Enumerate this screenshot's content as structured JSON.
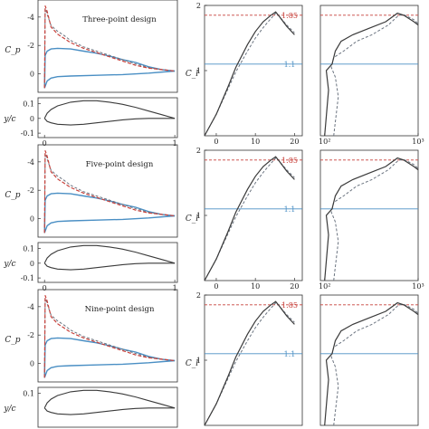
{
  "colors": {
    "solid": "#3a3a3a",
    "dashed": "#6b7480",
    "red": "#c8413b",
    "blue": "#4a8fc4"
  },
  "chart_data": {
    "type": "line",
    "rows": [
      {
        "design_label": "Three-point design",
        "cp_ylabel": "C_p",
        "cp_ytick_labels": [
          "-4",
          "-2",
          "0"
        ],
        "cp_yticks": [
          -4,
          -2,
          0
        ],
        "cp_ylim": [
          -5.2,
          1.3
        ],
        "geom_ylabel": "y/c",
        "geom_ytick_labels": [
          "0.1",
          "0",
          "-0.1"
        ],
        "geom_yticks": [
          0.1,
          0,
          -0.1
        ],
        "geom_ylim": [
          -0.13,
          0.14
        ],
        "x_tick_labels": [
          "0",
          "1"
        ],
        "x_ticks": [
          0,
          1
        ],
        "cl_ylabel": "C_l",
        "cl_ytick_labels": [
          "2",
          "1"
        ],
        "cl_yticks": [
          2,
          1
        ],
        "cl_ylim": [
          0,
          2.0
        ],
        "alpha_tick_labels": [
          "0",
          "10",
          "20"
        ],
        "alpha_ticks": [
          0,
          10,
          20
        ],
        "alpha_xlim": [
          -3,
          22
        ],
        "cd_tick_labels": [
          "10²",
          "10³"
        ],
        "cd_ticks": [
          100,
          1000
        ],
        "ref_labels": [
          "1.85",
          "1.1"
        ],
        "ref_values": [
          1.85,
          1.1
        ]
      },
      {
        "design_label": "Five-point design",
        "cp_ylabel": "C_p",
        "cp_ytick_labels": [
          "-4",
          "-2",
          "0"
        ],
        "cp_yticks": [
          -4,
          -2,
          0
        ],
        "cp_ylim": [
          -5.2,
          1.3
        ],
        "geom_ylabel": "y/c",
        "geom_ytick_labels": [
          "0.1",
          "0",
          "-0.1"
        ],
        "geom_yticks": [
          0.1,
          0,
          -0.1
        ],
        "geom_ylim": [
          -0.13,
          0.14
        ],
        "x_tick_labels": [
          "0",
          "1"
        ],
        "x_ticks": [
          0,
          1
        ],
        "cl_ylabel": "C_l",
        "cl_ytick_labels": [
          "2",
          "1"
        ],
        "cl_yticks": [
          2,
          1
        ],
        "cl_ylim": [
          0,
          2.0
        ],
        "alpha_tick_labels": [
          "0",
          "10",
          "20"
        ],
        "alpha_ticks": [
          0,
          10,
          20
        ],
        "alpha_xlim": [
          -3,
          22
        ],
        "cd_tick_labels": [
          "10²",
          "10³"
        ],
        "cd_ticks": [
          100,
          1000
        ],
        "ref_labels": [
          "1.85",
          "1.1"
        ],
        "ref_values": [
          1.85,
          1.1
        ]
      },
      {
        "design_label": "Nine-point design",
        "cp_ylabel": "C_p",
        "cp_ytick_labels": [
          "-4",
          "-2",
          "0"
        ],
        "cp_yticks": [
          -4,
          -2,
          0
        ],
        "cp_ylim": [
          -5.2,
          1.3
        ],
        "geom_ylabel": "y/c",
        "geom_ytick_labels": [
          "0.1"
        ],
        "geom_yticks": [
          0.1
        ],
        "geom_ylim": [
          -0.13,
          0.14
        ],
        "x_tick_labels": [],
        "x_ticks": [],
        "cl_ylabel": "C_l",
        "cl_ytick_labels": [
          "2",
          "1"
        ],
        "cl_yticks": [
          2,
          1
        ],
        "cl_ylim": [
          0,
          2.0
        ],
        "alpha_tick_labels": [],
        "alpha_ticks": [],
        "alpha_xlim": [
          -3,
          22
        ],
        "cd_tick_labels": [],
        "cd_ticks": [],
        "ref_labels": [
          "1.85",
          "1.1"
        ],
        "ref_values": [
          1.85,
          1.1
        ]
      }
    ],
    "series": {
      "cp_upper_red": {
        "x": [
          0.0,
          0.005,
          0.02,
          0.05,
          0.1,
          0.15,
          0.2,
          0.3,
          0.4,
          0.5,
          0.6,
          0.7,
          0.8,
          0.9,
          1.0
        ],
        "y": [
          1.0,
          -4.8,
          -4.4,
          -3.3,
          -2.8,
          -2.5,
          -2.2,
          -1.8,
          -1.5,
          -1.2,
          -0.9,
          -0.6,
          -0.4,
          -0.3,
          -0.2
        ]
      },
      "cp_upper_dash": {
        "x": [
          0.0,
          0.005,
          0.02,
          0.05,
          0.1,
          0.15,
          0.2,
          0.3,
          0.4,
          0.5,
          0.6,
          0.7,
          0.8,
          0.9,
          1.0
        ],
        "y": [
          1.0,
          -4.6,
          -4.2,
          -3.4,
          -3.0,
          -2.7,
          -2.35,
          -1.9,
          -1.6,
          -1.3,
          -1.0,
          -0.7,
          -0.45,
          -0.3,
          -0.2
        ]
      },
      "cp_upper_blue": {
        "x": [
          0.0,
          0.005,
          0.02,
          0.05,
          0.1,
          0.2,
          0.3,
          0.4,
          0.5,
          0.6,
          0.7,
          0.8,
          0.9,
          1.0
        ],
        "y": [
          1.0,
          -1.3,
          -1.6,
          -1.75,
          -1.8,
          -1.75,
          -1.6,
          -1.45,
          -1.25,
          -1.0,
          -0.8,
          -0.5,
          -0.3,
          -0.2
        ]
      },
      "cp_lower_blue": {
        "x": [
          0.0,
          0.02,
          0.05,
          0.1,
          0.2,
          0.4,
          0.6,
          0.8,
          1.0
        ],
        "y": [
          1.0,
          0.5,
          0.3,
          0.2,
          0.15,
          0.1,
          0.05,
          -0.05,
          -0.2
        ]
      },
      "airfoil_upper": {
        "x": [
          0.0,
          0.02,
          0.05,
          0.1,
          0.2,
          0.3,
          0.4,
          0.5,
          0.6,
          0.7,
          0.8,
          0.9,
          1.0
        ],
        "y": [
          0.0,
          0.035,
          0.06,
          0.085,
          0.11,
          0.12,
          0.12,
          0.11,
          0.095,
          0.075,
          0.05,
          0.025,
          0.0
        ]
      },
      "airfoil_lower": {
        "x": [
          0.0,
          0.02,
          0.05,
          0.1,
          0.2,
          0.3,
          0.4,
          0.5,
          0.6,
          0.7,
          0.8,
          0.9,
          1.0
        ],
        "y": [
          0.0,
          -0.02,
          -0.03,
          -0.04,
          -0.045,
          -0.04,
          -0.03,
          -0.02,
          -0.01,
          -0.003,
          0.0,
          0.0,
          0.0
        ]
      },
      "cl_alpha_solid": {
        "x": [
          -3,
          0,
          3,
          5,
          8,
          10,
          12,
          14,
          15.2,
          16,
          18,
          20
        ],
        "y": [
          0.0,
          0.33,
          0.75,
          1.05,
          1.4,
          1.6,
          1.75,
          1.85,
          1.9,
          1.84,
          1.68,
          1.55
        ]
      },
      "cl_alpha_dash": {
        "x": [
          -3,
          0,
          3,
          5,
          8,
          10,
          12,
          14,
          15.2,
          16,
          18,
          20
        ],
        "y": [
          0.0,
          0.33,
          0.72,
          0.98,
          1.3,
          1.5,
          1.66,
          1.8,
          1.88,
          1.84,
          1.7,
          1.58
        ]
      },
      "polar_solid": {
        "cd": [
          100,
          110,
          104,
          120,
          130,
          150,
          200,
          300,
          450,
          600,
          700,
          900,
          1000
        ],
        "cl": [
          0.0,
          0.7,
          1.0,
          1.1,
          1.3,
          1.45,
          1.55,
          1.65,
          1.75,
          1.88,
          1.85,
          1.75,
          1.7
        ]
      },
      "polar_dash": {
        "cd": [
          125,
          140,
          130,
          118,
          125,
          160,
          220,
          320,
          480,
          620,
          720,
          900,
          1000
        ],
        "cl": [
          0.0,
          0.6,
          0.9,
          1.05,
          1.2,
          1.3,
          1.45,
          1.55,
          1.7,
          1.85,
          1.85,
          1.78,
          1.72
        ]
      }
    }
  }
}
